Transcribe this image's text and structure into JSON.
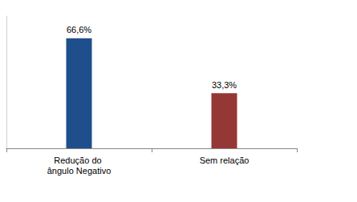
{
  "chart_data": {
    "type": "bar",
    "categories": [
      "Redução do ângulo Negativo",
      "Sem relação"
    ],
    "values": [
      66.6,
      33.3
    ],
    "value_labels": [
      "66,6%",
      "33,3%"
    ],
    "colors": [
      "#1f4e8c",
      "#953735"
    ],
    "ylim": [
      0,
      80
    ],
    "grid": false,
    "data_labels": true,
    "tick_labels": "x"
  }
}
